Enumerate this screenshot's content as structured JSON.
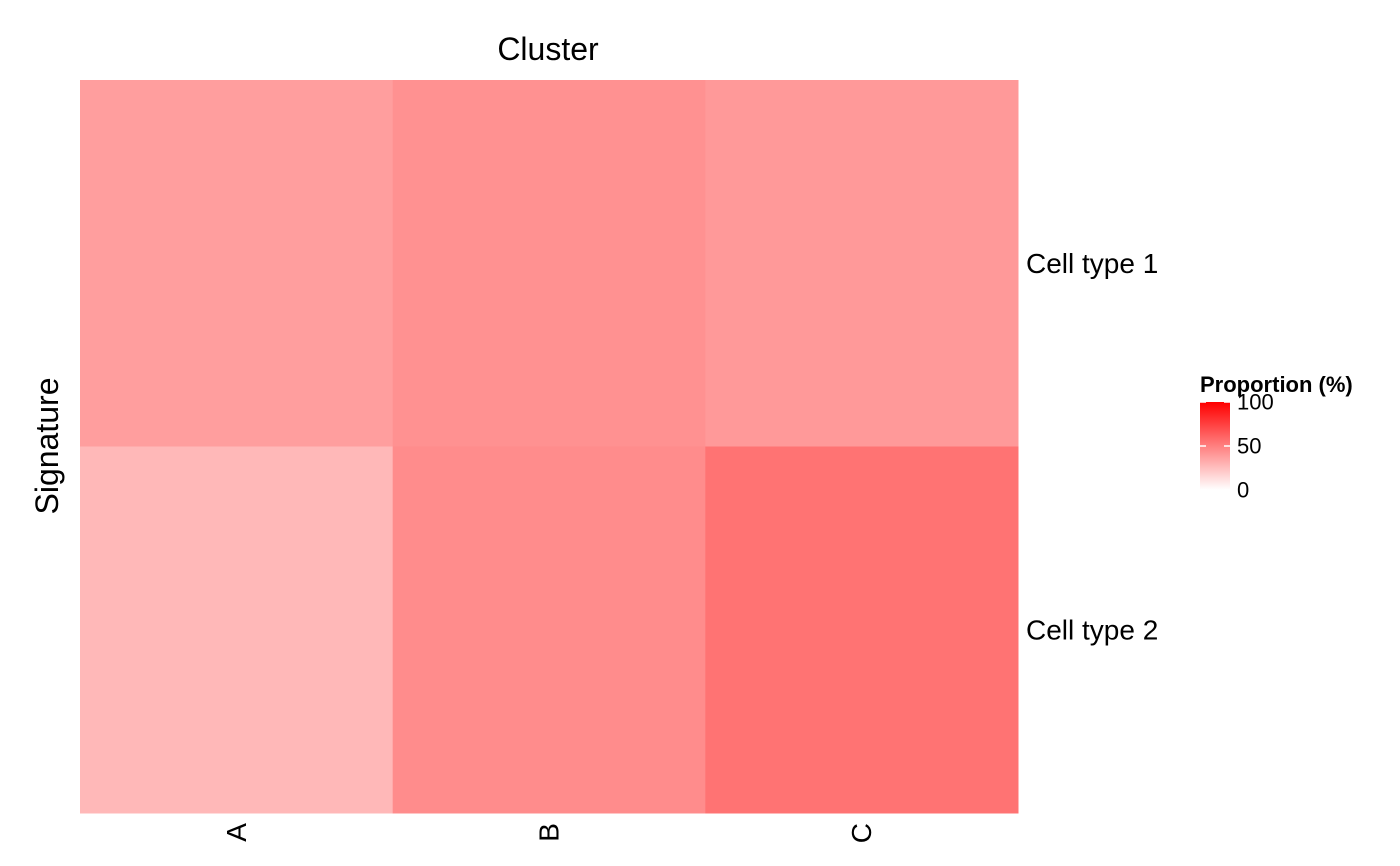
{
  "chart_data": {
    "type": "heatmap",
    "title": "Cluster",
    "xlabel": "",
    "ylabel": "Signature",
    "x_categories": [
      "A",
      "B",
      "C"
    ],
    "y_categories": [
      "Cell type 1",
      "Cell type 2"
    ],
    "values": [
      [
        38,
        43,
        40
      ],
      [
        28,
        45,
        55
      ]
    ],
    "color_scale": {
      "low": "#ffffff",
      "high": "#ff0000",
      "domain": [
        0,
        100
      ]
    },
    "legend": {
      "title": "Proportion (%)",
      "breaks": [
        0,
        50,
        100
      ],
      "labels": [
        "0",
        "50",
        "100"
      ],
      "position": "right"
    },
    "grid": false
  }
}
